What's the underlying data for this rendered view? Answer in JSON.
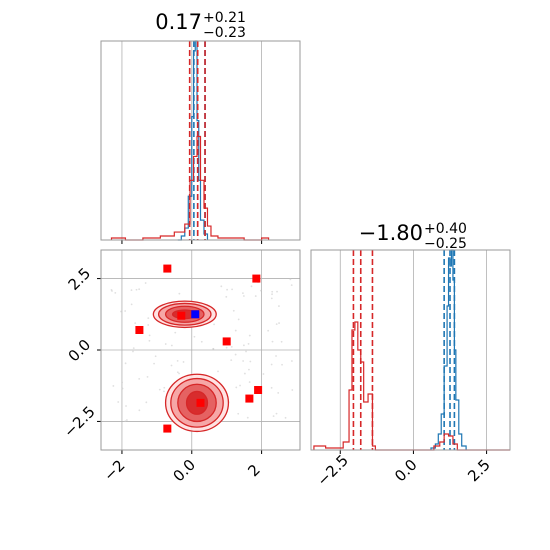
{
  "figure": {
    "type": "corner-plot",
    "colors": {
      "blue": "#1f77b4",
      "red": "#d62728",
      "marker": "#ff0000",
      "true_value": "#0000ff",
      "grid": "#b0b0b0",
      "frame": "#9a9a9a"
    }
  },
  "chart_data": [
    {
      "panel": "marginal-param-1",
      "type": "histogram",
      "title": {
        "value": "0.17",
        "plus": "+0.21",
        "minus": "−0.23"
      },
      "xlim": [
        -2.6,
        3.1
      ],
      "ylim": [
        0,
        1
      ],
      "xticks": [
        -2,
        0,
        2
      ],
      "series": [
        {
          "name": "",
          "color": "#1f77b4",
          "quantile_lines": [
            0.06,
            0.17,
            0.38
          ],
          "bins": [
            [
              -0.4,
              -0.3,
              0.0
            ],
            [
              -0.3,
              -0.2,
              0.02
            ],
            [
              -0.2,
              -0.1,
              0.06
            ],
            [
              -0.1,
              0.0,
              0.22
            ],
            [
              0.0,
              0.05,
              0.62
            ],
            [
              0.05,
              0.1,
              0.95
            ],
            [
              0.1,
              0.15,
              1.0
            ],
            [
              0.15,
              0.2,
              0.6
            ],
            [
              0.2,
              0.25,
              0.3
            ],
            [
              0.25,
              0.35,
              0.1
            ],
            [
              0.35,
              0.45,
              0.03
            ]
          ]
        },
        {
          "name": "",
          "color": "#d62728",
          "quantile_lines": [
            -0.06,
            0.17,
            0.38
          ],
          "bins": [
            [
              -2.3,
              -1.9,
              0.01
            ],
            [
              -1.9,
              -1.4,
              0.0
            ],
            [
              -1.4,
              -0.9,
              0.01
            ],
            [
              -0.9,
              -0.5,
              0.02
            ],
            [
              -0.5,
              -0.2,
              0.04
            ],
            [
              -0.2,
              -0.05,
              0.08
            ],
            [
              -0.05,
              0.05,
              0.3
            ],
            [
              0.05,
              0.15,
              0.42
            ],
            [
              0.15,
              0.25,
              0.52
            ],
            [
              0.25,
              0.35,
              0.3
            ],
            [
              0.35,
              0.45,
              0.16
            ],
            [
              0.45,
              0.55,
              0.07
            ],
            [
              0.55,
              0.75,
              0.02
            ],
            [
              0.75,
              1.5,
              0.01
            ],
            [
              1.5,
              2.0,
              0.0
            ],
            [
              2.0,
              2.2,
              0.01
            ]
          ]
        }
      ]
    },
    {
      "panel": "joint-param-1-param-2",
      "type": "scatter",
      "xlim": [
        -2.6,
        3.1
      ],
      "ylim": [
        -3.5,
        3.5
      ],
      "xticks": [
        -2,
        0,
        2
      ],
      "yticks": [
        2.5,
        0.0,
        -2.5
      ],
      "contours": [
        {
          "color": "#1f77b4",
          "cx": 0.05,
          "cy": 1.25,
          "rx": [
            0.18,
            0.3
          ],
          "ry": [
            0.12,
            0.22
          ]
        },
        {
          "color": "#d62728",
          "cx": -0.2,
          "cy": 1.25,
          "rx": [
            0.35,
            0.55,
            0.75,
            0.9
          ],
          "ry": [
            0.15,
            0.28,
            0.38,
            0.46
          ]
        },
        {
          "color": "#d62728",
          "cx": 0.15,
          "cy": -1.85,
          "rx": [
            0.3,
            0.55,
            0.75,
            0.9
          ],
          "ry": [
            0.4,
            0.65,
            0.85,
            1.0
          ]
        }
      ],
      "markers": [
        [
          -0.7,
          2.85
        ],
        [
          1.85,
          2.5
        ],
        [
          -1.5,
          0.7
        ],
        [
          -0.3,
          1.2
        ],
        [
          1.0,
          0.3
        ],
        [
          -0.7,
          -2.75
        ],
        [
          1.65,
          -1.7
        ],
        [
          1.9,
          -1.4
        ],
        [
          0.25,
          -1.85
        ],
        [
          0.1,
          1.25
        ]
      ],
      "true_value": [
        0.1,
        1.25
      ]
    },
    {
      "panel": "marginal-param-2",
      "type": "histogram",
      "title": {
        "value": "−1.80",
        "plus": "+0.40",
        "minus": "−0.25"
      },
      "xlim": [
        -3.5,
        3.3
      ],
      "ylim": [
        0,
        1
      ],
      "xticks": [
        -2.5,
        0.0,
        2.5
      ],
      "series": [
        {
          "name": "",
          "color": "#1f77b4",
          "quantile_lines": [
            1.05,
            1.25,
            1.4
          ],
          "bins": [
            [
              0.6,
              0.75,
              0.01
            ],
            [
              0.75,
              0.85,
              0.03
            ],
            [
              0.85,
              0.95,
              0.08
            ],
            [
              0.95,
              1.05,
              0.18
            ],
            [
              1.05,
              1.15,
              0.42
            ],
            [
              1.15,
              1.2,
              0.72
            ],
            [
              1.2,
              1.25,
              0.96
            ],
            [
              1.25,
              1.3,
              0.92
            ],
            [
              1.3,
              1.35,
              1.0
            ],
            [
              1.35,
              1.4,
              0.85
            ],
            [
              1.4,
              1.45,
              0.5
            ],
            [
              1.45,
              1.55,
              0.25
            ],
            [
              1.55,
              1.65,
              0.08
            ],
            [
              1.65,
              1.8,
              0.02
            ]
          ]
        },
        {
          "name": "",
          "color": "#d62728",
          "quantile_lines": [
            -2.05,
            -1.8,
            -1.4
          ],
          "bins": [
            [
              -3.4,
              -3.0,
              0.02
            ],
            [
              -3.0,
              -2.4,
              0.01
            ],
            [
              -2.4,
              -2.2,
              0.04
            ],
            [
              -2.2,
              -2.1,
              0.3
            ],
            [
              -2.1,
              -2.0,
              0.6
            ],
            [
              -2.0,
              -1.9,
              0.64
            ],
            [
              -1.9,
              -1.8,
              0.5
            ],
            [
              -1.8,
              -1.7,
              0.44
            ],
            [
              -1.7,
              -1.55,
              0.24
            ],
            [
              -1.55,
              -1.4,
              0.28
            ],
            [
              -1.4,
              -1.3,
              0.02
            ],
            [
              -1.3,
              0.7,
              0.0
            ],
            [
              0.7,
              0.9,
              0.02
            ],
            [
              0.9,
              1.05,
              0.04
            ],
            [
              1.05,
              1.2,
              0.08
            ],
            [
              1.2,
              1.35,
              0.07
            ],
            [
              1.35,
              1.5,
              0.03
            ],
            [
              1.5,
              3.3,
              0.0
            ]
          ]
        }
      ]
    }
  ]
}
